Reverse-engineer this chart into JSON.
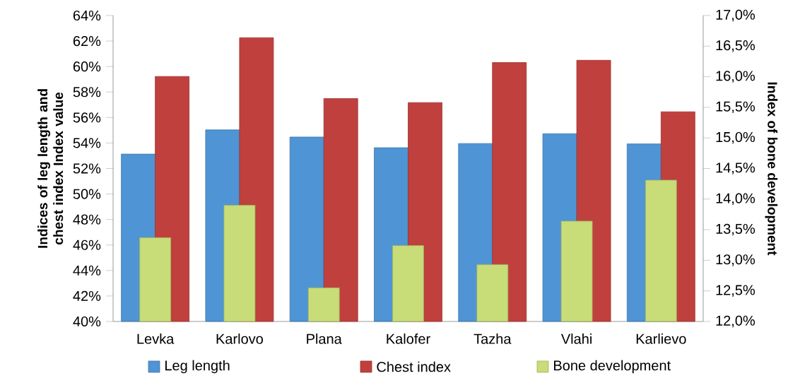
{
  "chart_data": {
    "type": "bar",
    "categories": [
      "Levka",
      "Karlovo",
      "Plana",
      "Kalofer",
      "Tazha",
      "Vlahi",
      "Karlievo"
    ],
    "series": [
      {
        "name": "Leg length",
        "color": "#4f94d4",
        "values": [
          53.13,
          55.03,
          54.47,
          53.63,
          53.96,
          54.73,
          53.93
        ]
      },
      {
        "name": "Chest index",
        "color": "#c0403d",
        "values": [
          59.22,
          62.26,
          57.49,
          57.17,
          60.31,
          60.49,
          56.45
        ]
      },
      {
        "name": "Bone development",
        "color": "#c8dc78",
        "axis": "y2",
        "values": [
          13.37,
          13.9,
          12.55,
          13.24,
          12.93,
          13.64,
          14.31
        ]
      }
    ],
    "ylabel": "Indices of leg length and chest index Index value",
    "y2label": "Index of bone development",
    "ylim": [
      40,
      64
    ],
    "yticks": [
      {
        "value": 40,
        "label": "40%"
      },
      {
        "value": 42,
        "label": "42%"
      },
      {
        "value": 44,
        "label": "44%"
      },
      {
        "value": 46,
        "label": "46%"
      },
      {
        "value": 48,
        "label": "48%"
      },
      {
        "value": 50,
        "label": "50%"
      },
      {
        "value": 52,
        "label": "52%"
      },
      {
        "value": 54,
        "label": "54%"
      },
      {
        "value": 56,
        "label": "56%"
      },
      {
        "value": 58,
        "label": "58%"
      },
      {
        "value": 60,
        "label": "60%"
      },
      {
        "value": 62,
        "label": "62%"
      },
      {
        "value": 64,
        "label": "64%"
      }
    ],
    "y2lim": [
      12,
      17
    ],
    "y2ticks": [
      {
        "value": 12,
        "label": "12,0%"
      },
      {
        "value": 12.5,
        "label": "12,5%"
      },
      {
        "value": 13,
        "label": "13,0%"
      },
      {
        "value": 13.5,
        "label": "13,5%"
      },
      {
        "value": 14,
        "label": "14,0%"
      },
      {
        "value": 14.5,
        "label": "14,5%"
      },
      {
        "value": 15,
        "label": "15,0%"
      },
      {
        "value": 15.5,
        "label": "15,5%"
      },
      {
        "value": 16,
        "label": "16,0%"
      },
      {
        "value": 16.5,
        "label": "16,5%"
      },
      {
        "value": 17,
        "label": "17,0%"
      }
    ],
    "grid": false,
    "legend": "bottom"
  }
}
